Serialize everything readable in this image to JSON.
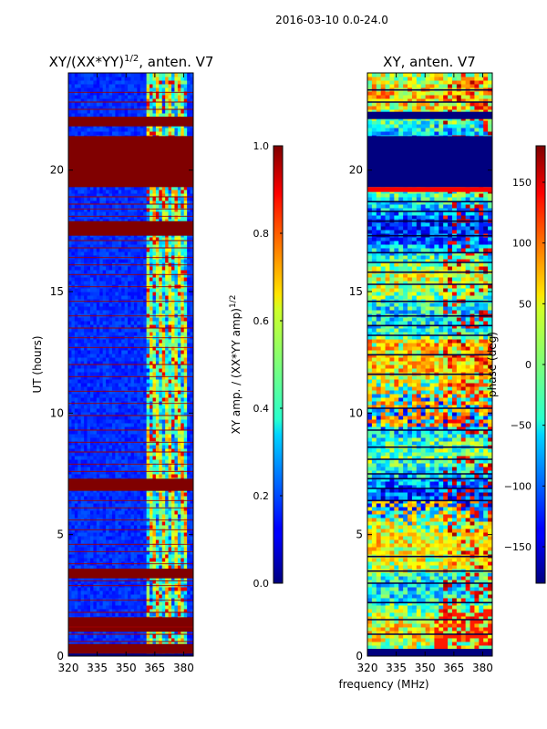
{
  "figure": {
    "title": "2016-03-10 0.0-24.0",
    "xlabel_shared": "frequency (MHz)"
  },
  "chart_data": [
    {
      "type": "heatmap",
      "title": "XY/(XX*YY)",
      "title_exp": "1/2",
      "title_suffix": ", anten. V7",
      "xlabel": "",
      "ylabel": "UT (hours)",
      "xlim": [
        320,
        385
      ],
      "ylim": [
        0,
        24
      ],
      "x_ticks": [
        320,
        335,
        350,
        365,
        380
      ],
      "y_ticks": [
        0,
        5,
        10,
        15,
        20
      ],
      "quantity": "normalized XY amplitude",
      "bands_ut": {
        "saturated": [
          [
            0.1,
            0.5
          ],
          [
            1.0,
            1.6
          ],
          [
            3.2,
            3.6
          ],
          [
            6.8,
            7.3
          ],
          [
            17.3,
            17.9
          ],
          [
            19.3,
            21.4
          ],
          [
            21.8,
            22.2
          ]
        ],
        "flagged": [
          [
            0.0,
            0.1
          ]
        ]
      },
      "rfi_lines_ut": [
        0.6,
        0.9,
        1.2,
        1.8,
        2.3,
        2.9,
        3.1,
        3.8,
        4.3,
        4.6,
        5.2,
        5.6,
        6.1,
        6.4,
        7.6,
        7.9,
        8.4,
        8.8,
        9.3,
        9.9,
        10.4,
        10.9,
        11.5,
        12.0,
        12.7,
        13.1,
        13.5,
        14.0,
        14.6,
        15.2,
        15.7,
        16.1,
        16.4,
        16.8,
        17.1,
        18.1,
        18.4,
        18.6,
        18.9,
        22.5,
        22.8,
        23.2
      ],
      "colorbar": {
        "label": "XY amp. / (XX*YY amp)",
        "label_exp": "1/2",
        "range": [
          0.0,
          1.0
        ],
        "ticks": [
          "0.0",
          "0.2",
          "0.4",
          "0.6",
          "0.8",
          "1.0"
        ]
      }
    },
    {
      "type": "heatmap",
      "title": "XY, anten. V7",
      "xlabel": "",
      "ylabel": "",
      "xlim": [
        320,
        385
      ],
      "ylim": [
        0,
        24
      ],
      "x_ticks": [
        320,
        335,
        350,
        365,
        380
      ],
      "y_ticks": [
        0,
        5,
        10,
        15,
        20
      ],
      "quantity": "XY phase (deg)",
      "bands_ut": {
        "flagged": [
          [
            19.3,
            21.4
          ],
          [
            22.1,
            22.4
          ],
          [
            0.0,
            0.3
          ]
        ],
        "red_phase": [
          [
            19.1,
            19.3
          ]
        ]
      },
      "rfi_lines_ut": [
        0.9,
        1.5,
        2.2,
        3.0,
        3.5,
        4.1,
        6.4,
        6.9,
        7.3,
        7.5,
        8.1,
        8.6,
        9.3,
        10.2,
        11.6,
        12.4,
        13.2,
        13.6,
        14.0,
        14.6,
        15.3,
        15.8,
        16.2,
        16.6,
        17.3,
        17.9,
        18.3,
        18.7,
        22.8,
        23.3
      ],
      "colorbar": {
        "label": "phase (deg)",
        "range": [
          -180,
          180
        ],
        "ticks": [
          "−150",
          "−100",
          "−50",
          "0",
          "50",
          "100",
          "150"
        ],
        "tick_values": [
          -150,
          -100,
          -50,
          0,
          50,
          100,
          150
        ]
      }
    }
  ]
}
